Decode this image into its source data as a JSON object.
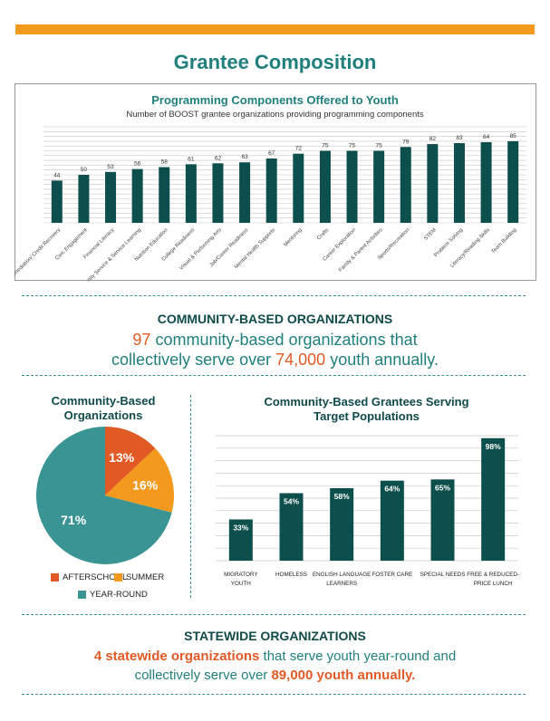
{
  "page_title": "Grantee Composition",
  "colors": {
    "accent_orange": "#f39a1e",
    "teal": "#1f7f7d",
    "dark_teal": "#0f4a4a",
    "bar": "#0d4f4c",
    "afterschool": "#e15a25",
    "summer": "#f39a1e",
    "year_round": "#3a9494"
  },
  "programming": {
    "title": "Programming Components Offered to Youth",
    "subtitle": "Number of BOOST grantee organizations providing programming components"
  },
  "community": {
    "heading": "COMMUNITY-BASED ORGANIZATIONS",
    "line1_hl": "97",
    "line1_rest": " community-based organizations that",
    "line2_a": "collectively serve over ",
    "line2_hl": "74,000",
    "line2_b": " youth annually."
  },
  "pie": {
    "title_line1": "Community-Based",
    "title_line2": "Organizations",
    "legend": {
      "afterschool": "AFTERSCHOOL",
      "summer": "SUMMER",
      "year_round": "YEAR-ROUND"
    }
  },
  "target": {
    "title_line1": "Community-Based Grantees Serving",
    "title_line2": "Target Populations"
  },
  "statewide": {
    "heading": "STATEWIDE ORGANIZATIONS",
    "line1_hl": "4 statewide organizations",
    "line1_rest": " that serve youth year-round and",
    "line2_a": "collectively serve over ",
    "line2_hl": "89,000 youth annually."
  },
  "chart_data": [
    {
      "type": "bar",
      "title": "Programming Components Offered to Youth",
      "subtitle": "Number of BOOST grantee organizations providing programming components",
      "categories": [
        "Academic Remediation/ Credit Recovery",
        "Civic Engagement",
        "Financial Literacy",
        "Community Service & Service Learning",
        "Nutrition Education",
        "College Readiness",
        "Visual & Performing Arts",
        "Job/Career Readiness",
        "Mental Health Supports",
        "Mentoring",
        "Crafts",
        "Career Exploration",
        "Family & Parent Activities",
        "Sports/Recreation",
        "STEM",
        "Problem Solving",
        "Literacy/Reading Skills",
        "Team Building"
      ],
      "values": [
        44,
        50,
        53,
        56,
        58,
        61,
        62,
        63,
        67,
        72,
        75,
        75,
        75,
        79,
        82,
        83,
        84,
        85
      ],
      "ylim": [
        0,
        100
      ],
      "grid": true
    },
    {
      "type": "pie",
      "title": "Community-Based Organizations",
      "labels": [
        "AFTERSCHOOL",
        "SUMMER",
        "YEAR-ROUND"
      ],
      "values": [
        13,
        16,
        71
      ],
      "value_labels": [
        "13%",
        "16%",
        "71%"
      ],
      "legend_placement": "bottom"
    },
    {
      "type": "bar",
      "title": "Community-Based Grantees Serving Target Populations",
      "categories": [
        [
          "MIGRATORY",
          "YOUTH"
        ],
        [
          "HOMELESS"
        ],
        [
          "ENGLISH LANGUAGE",
          "LEARNERS"
        ],
        [
          "FOSTER CARE"
        ],
        [
          "SPECIAL NEEDS"
        ],
        [
          "FREE & REDUCED-",
          "PRICE LUNCH"
        ]
      ],
      "values": [
        33,
        54,
        58,
        64,
        65,
        98
      ],
      "value_labels": [
        "33%",
        "54%",
        "58%",
        "64%",
        "65%",
        "98%"
      ],
      "ylim": [
        0,
        100
      ],
      "grid": true
    }
  ]
}
